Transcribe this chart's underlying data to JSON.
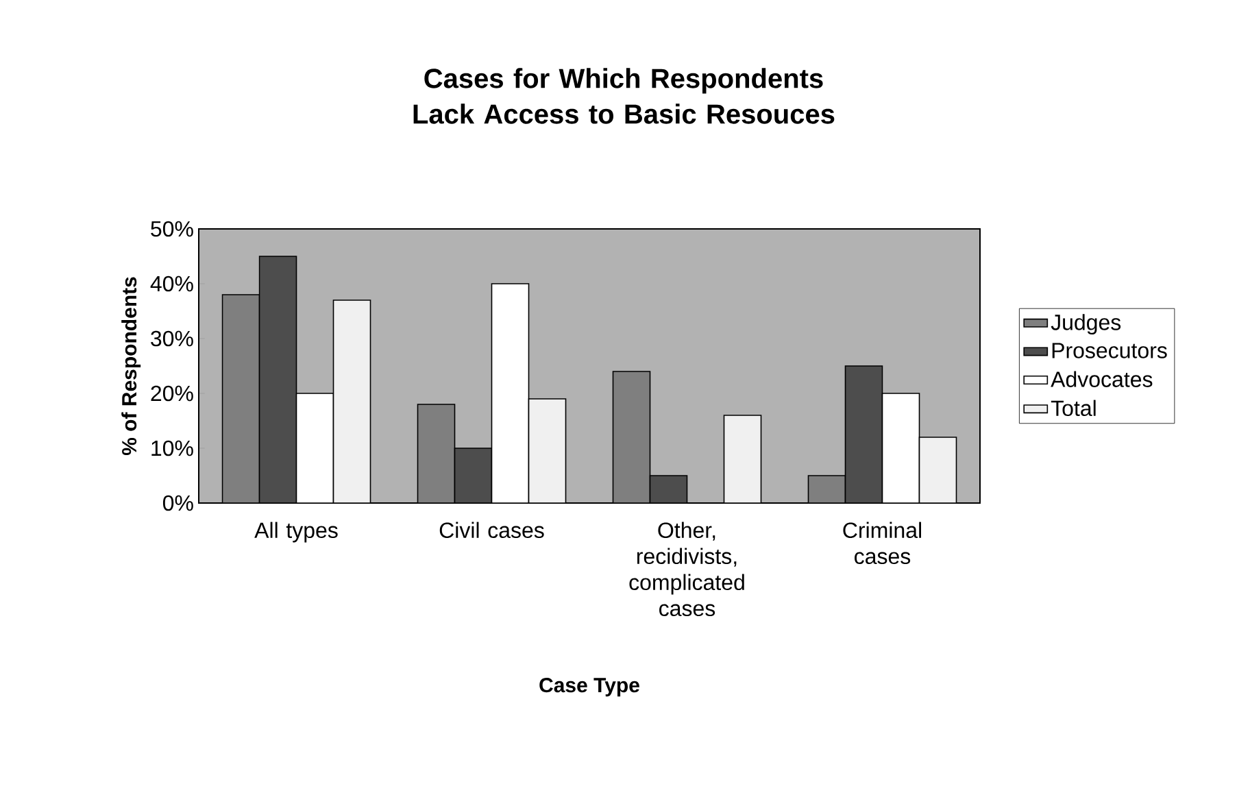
{
  "chart_data": {
    "type": "bar",
    "title": "Cases for Which Respondents Lack Access to Basic Resouces",
    "xlabel": "Case Type",
    "ylabel": "% of Respondents",
    "categories": [
      "All types",
      "Civil cases",
      "Other, recidivists, complicated cases",
      "Criminal cases"
    ],
    "series": [
      {
        "name": "Judges",
        "color": "#7f7f7f",
        "values": [
          38,
          18,
          24,
          5
        ]
      },
      {
        "name": "Prosecutors",
        "color": "#4d4d4d",
        "values": [
          45,
          10,
          5,
          25
        ]
      },
      {
        "name": "Advocates",
        "color": "#ffffff",
        "values": [
          20,
          40,
          0,
          20
        ]
      },
      {
        "name": "Total",
        "color": "#f0f0f0",
        "values": [
          37,
          19,
          16,
          12
        ]
      }
    ],
    "ylim": [
      0,
      50
    ],
    "yticks": [
      {
        "value": 0,
        "label": "0%"
      },
      {
        "value": 10,
        "label": "10%"
      },
      {
        "value": 20,
        "label": "20%"
      },
      {
        "value": 30,
        "label": "30%"
      },
      {
        "value": 40,
        "label": "40%"
      },
      {
        "value": 50,
        "label": "50%"
      }
    ],
    "grid": false,
    "legend": "right"
  }
}
